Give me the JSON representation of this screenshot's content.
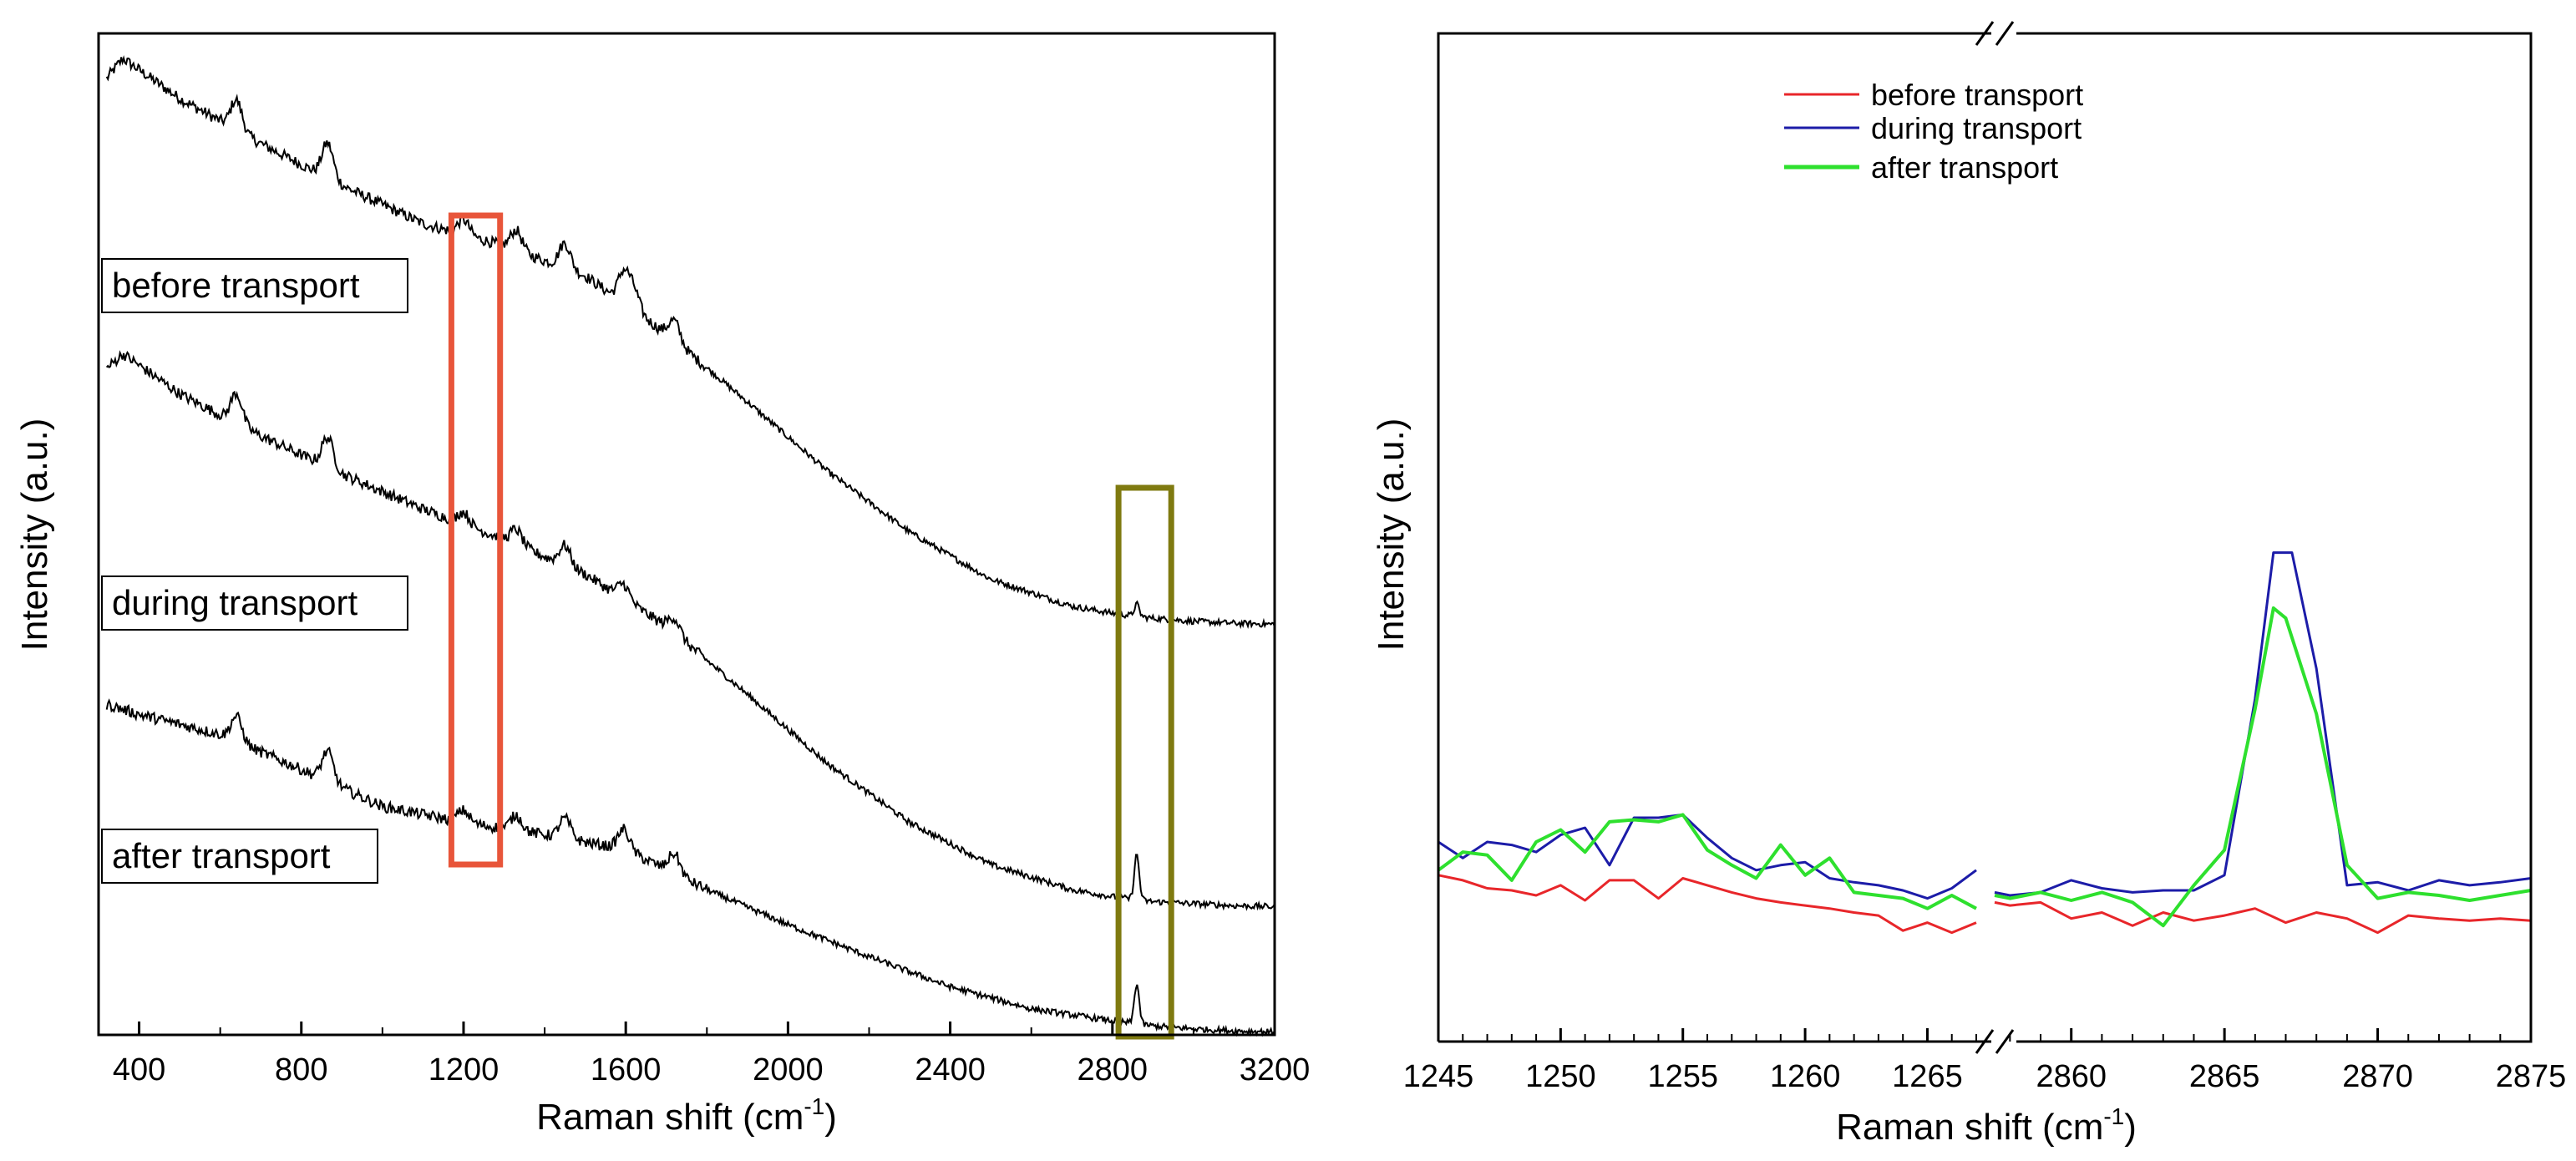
{
  "chart_data": [
    {
      "type": "line",
      "panel": "left",
      "xlabel": "Raman shift (cm",
      "xlabel_sup": "-1",
      "xlabel_tail": ")",
      "ylabel": "Intensity (a.u.)",
      "xlim": [
        300,
        3200
      ],
      "ylim": [
        0,
        100
      ],
      "xticks": [
        400,
        800,
        1200,
        1600,
        2000,
        2400,
        2800,
        3200
      ],
      "y_ticks_shown": false,
      "series": [
        {
          "name": "before transport",
          "color": "#000000",
          "baseline": {
            "x": [
              320,
              360,
              500,
              700,
              900,
              1100,
              1300,
              1500,
              1700,
              1900,
              2100,
              2300,
              2500,
              2700,
              2800,
              2900,
              3000,
              3100,
              3200
            ],
            "y": [
              95.5,
              97.5,
              93.5,
              89.0,
              84.8,
              81.0,
              78.8,
              75.8,
              70.0,
              63.2,
              56.2,
              50.2,
              45.5,
              42.8,
              42.1,
              41.6,
              41.3,
              41.1,
              41.0
            ]
          },
          "peaks": [
            {
              "x": 640,
              "h": 3.0
            },
            {
              "x": 865,
              "h": 3.5
            },
            {
              "x": 1200,
              "h": 1.5
            },
            {
              "x": 1330,
              "h": 2.0
            },
            {
              "x": 1450,
              "h": 2.5
            },
            {
              "x": 1595,
              "h": 3.0
            },
            {
              "x": 1620,
              "h": 2.0
            },
            {
              "x": 1720,
              "h": 2.0
            },
            {
              "x": 2860,
              "h": 1.2
            }
          ],
          "label": "before transport"
        },
        {
          "name": "during transport",
          "color": "#000000",
          "baseline": {
            "x": [
              320,
              360,
              500,
              700,
              900,
              1100,
              1300,
              1500,
              1700,
              1900,
              2100,
              2300,
              2500,
              2700,
              2800,
              2900,
              3000,
              3100,
              3200
            ],
            "y": [
              66.5,
              68.0,
              64.0,
              59.8,
              56.0,
              52.5,
              49.5,
              46.0,
              40.8,
              34.0,
              27.0,
              21.2,
              17.0,
              14.5,
              13.8,
              13.3,
              13.1,
              12.9,
              12.8
            ]
          },
          "peaks": [
            {
              "x": 640,
              "h": 3.0
            },
            {
              "x": 865,
              "h": 3.0
            },
            {
              "x": 1200,
              "h": 1.2
            },
            {
              "x": 1330,
              "h": 1.5
            },
            {
              "x": 1450,
              "h": 2.0
            },
            {
              "x": 1595,
              "h": 1.5
            },
            {
              "x": 1720,
              "h": 1.5
            },
            {
              "x": 2860,
              "h": 4.5
            }
          ],
          "label": "during transport"
        },
        {
          "name": "after transport",
          "color": "#000000",
          "baseline": {
            "x": [
              320,
              400,
              600,
              800,
              1000,
              1200,
              1400,
              1600,
              1800,
              2000,
              2200,
              2400,
              2600,
              2800,
              2900,
              3000,
              3100,
              3200
            ],
            "y": [
              33.0,
              32.0,
              30.0,
              26.5,
              22.8,
              21.2,
              20.0,
              18.5,
              14.5,
              11.0,
              7.8,
              4.8,
              2.6,
              1.4,
              0.9,
              0.6,
              0.4,
              0.3
            ]
          },
          "peaks": [
            {
              "x": 640,
              "h": 2.5
            },
            {
              "x": 865,
              "h": 3.0
            },
            {
              "x": 1200,
              "h": 1.2
            },
            {
              "x": 1330,
              "h": 1.5
            },
            {
              "x": 1450,
              "h": 2.0
            },
            {
              "x": 1595,
              "h": 2.0
            },
            {
              "x": 1720,
              "h": 2.0
            },
            {
              "x": 2860,
              "h": 4.0
            }
          ],
          "label": "after transport"
        }
      ],
      "highlight_boxes": [
        {
          "x_range": [
            1170,
            1290
          ],
          "color": "#e8553a"
        },
        {
          "x_range": [
            2815,
            2945
          ],
          "color": "#7f7a10"
        }
      ]
    },
    {
      "type": "line",
      "panel": "right",
      "xlabel": "Raman shift (cm",
      "xlabel_sup": "-1",
      "xlabel_tail": ")",
      "ylabel": "Intensity (a.u.)",
      "broken_axis": true,
      "segments": [
        {
          "xlim": [
            1245,
            1267
          ],
          "xticks": [
            1245,
            1250,
            1255,
            1260,
            1265
          ]
        },
        {
          "xlim": [
            2857.5,
            2875
          ],
          "xticks": [
            2860,
            2865,
            2870,
            2875
          ]
        }
      ],
      "ylim": [
        0,
        100
      ],
      "y_ticks_shown": false,
      "legend_position": "top-center",
      "series": [
        {
          "name": "before transport",
          "color": "#e8262a",
          "seg1": {
            "x": [
              1245,
              1246,
              1247,
              1248,
              1249,
              1250,
              1251,
              1252,
              1253,
              1254,
              1255,
              1256,
              1257,
              1258,
              1259,
              1260,
              1261,
              1262,
              1263,
              1264,
              1265,
              1266,
              1267
            ],
            "y": [
              16.5,
              16.0,
              15.2,
              15.0,
              14.5,
              15.5,
              14.0,
              16.0,
              16.0,
              14.2,
              16.2,
              15.5,
              14.8,
              14.2,
              13.8,
              13.5,
              13.2,
              12.8,
              12.5,
              11.0,
              11.8,
              10.8,
              11.8
            ]
          },
          "seg2": {
            "x": [
              2857.5,
              2858,
              2859,
              2860,
              2861,
              2862,
              2863,
              2864,
              2865,
              2866,
              2867,
              2868,
              2869,
              2870,
              2871,
              2872,
              2873,
              2874,
              2875
            ],
            "y": [
              13.8,
              13.5,
              13.8,
              12.2,
              12.8,
              11.5,
              12.8,
              12.0,
              12.5,
              13.2,
              11.8,
              12.8,
              12.2,
              10.8,
              12.5,
              12.2,
              12.0,
              12.2,
              12.0
            ]
          }
        },
        {
          "name": "during transport",
          "color": "#1c1ca8",
          "seg1": {
            "x": [
              1245,
              1246,
              1247,
              1248,
              1249,
              1250,
              1251,
              1252,
              1253,
              1254,
              1255,
              1256,
              1257,
              1258,
              1259,
              1260,
              1261,
              1262,
              1263,
              1264,
              1265,
              1266,
              1267
            ],
            "y": [
              19.8,
              18.2,
              19.8,
              19.5,
              18.8,
              20.5,
              21.2,
              17.5,
              22.2,
              22.2,
              22.5,
              20.2,
              18.2,
              17.0,
              17.5,
              17.8,
              16.2,
              15.8,
              15.5,
              15.0,
              14.2,
              15.2,
              17.0
            ]
          },
          "seg2": {
            "x": [
              2857.5,
              2858,
              2859,
              2860,
              2861,
              2862,
              2863,
              2864,
              2865,
              2866,
              2866.6,
              2867.2,
              2868,
              2869,
              2870,
              2871,
              2872,
              2873,
              2874,
              2875
            ],
            "y": [
              14.8,
              14.5,
              14.8,
              16.0,
              15.2,
              14.8,
              15.0,
              15.0,
              16.5,
              34.0,
              48.5,
              48.5,
              37.0,
              15.5,
              15.8,
              15.0,
              16.0,
              15.5,
              15.8,
              16.2
            ]
          }
        },
        {
          "name": "after transport",
          "color": "#2ee02e",
          "seg1": {
            "x": [
              1245,
              1246,
              1247,
              1248,
              1249,
              1250,
              1251,
              1252,
              1253,
              1254,
              1255,
              1256,
              1257,
              1258,
              1259,
              1260,
              1261,
              1262,
              1263,
              1264,
              1265,
              1266,
              1267
            ],
            "y": [
              17.0,
              18.8,
              18.5,
              16.0,
              19.8,
              21.0,
              18.8,
              21.8,
              22.0,
              21.8,
              22.5,
              19.0,
              17.5,
              16.2,
              19.5,
              16.5,
              18.2,
              14.8,
              14.5,
              14.2,
              13.2,
              14.5,
              13.2
            ]
          },
          "seg2": {
            "x": [
              2857.5,
              2858,
              2859,
              2860,
              2861,
              2862,
              2863,
              2864,
              2865,
              2866,
              2866.6,
              2867,
              2868,
              2869,
              2870,
              2871,
              2872,
              2873,
              2874,
              2875
            ],
            "y": [
              14.5,
              14.2,
              14.8,
              14.0,
              14.8,
              13.8,
              11.5,
              15.5,
              19.0,
              33.0,
              43.0,
              42.0,
              32.5,
              17.5,
              14.2,
              14.8,
              14.5,
              14.0,
              14.5,
              15.0
            ]
          }
        }
      ]
    }
  ]
}
